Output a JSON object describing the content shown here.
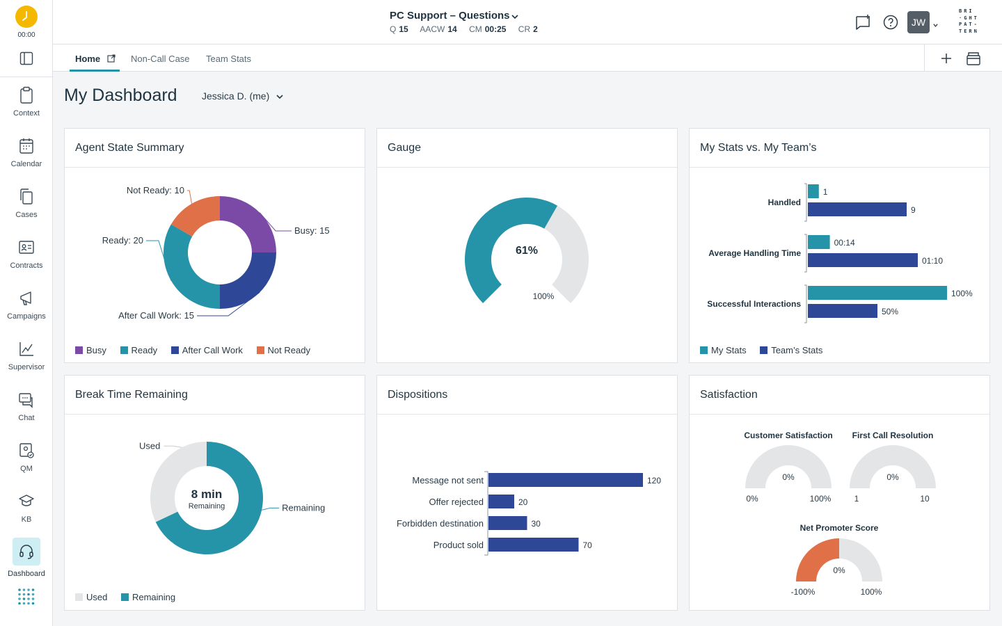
{
  "timer": {
    "time": "00:00"
  },
  "nav": {
    "items": [
      {
        "label": "Context",
        "icon": "clipboard-icon"
      },
      {
        "label": "Calendar",
        "icon": "calendar-icon"
      },
      {
        "label": "Cases",
        "icon": "documents-icon"
      },
      {
        "label": "Contracts",
        "icon": "id-card-icon"
      },
      {
        "label": "Campaigns",
        "icon": "megaphone-icon"
      },
      {
        "label": "Supervisor",
        "icon": "line-chart-icon"
      },
      {
        "label": "Chat",
        "icon": "chat-icon"
      },
      {
        "label": "QM",
        "icon": "qm-icon"
      },
      {
        "label": "KB",
        "icon": "graduation-cap-icon"
      },
      {
        "label": "Dashboard",
        "icon": "headset-icon",
        "active": true
      }
    ]
  },
  "header": {
    "queue_title": "PC Support – Questions",
    "stats": [
      {
        "label": "Q",
        "value": "15"
      },
      {
        "label": "AACW",
        "value": "14"
      },
      {
        "label": "CM",
        "value": "00:25"
      },
      {
        "label": "CR",
        "value": "2"
      }
    ],
    "avatar": "JW",
    "logo_lines": [
      "BRI",
      "·GHT",
      "PAT-",
      "TERN"
    ]
  },
  "tabs": [
    {
      "label": "Home",
      "active": true
    },
    {
      "label": "Non-Call Case"
    },
    {
      "label": "Team Stats"
    }
  ],
  "page": {
    "title": "My Dashboard",
    "user": "Jessica D. (me)"
  },
  "colors": {
    "busy": "#7b49a6",
    "ready": "#2593a8",
    "acw": "#2e4796",
    "notready": "#e07048",
    "grey": "#e4e5e7",
    "my_stats": "#2593a8",
    "team_stats": "#2e4796"
  },
  "cards": {
    "agent_state": {
      "title": "Agent State Summary",
      "legend": [
        "Busy",
        "Ready",
        "After Call Work",
        "Not Ready"
      ]
    },
    "gauge": {
      "title": "Gauge"
    },
    "my_stats": {
      "title": "My Stats vs. My Team’s",
      "legend": [
        "My Stats",
        "Team’s Stats"
      ]
    },
    "break_time": {
      "title": "Break Time Remaining",
      "legend": [
        "Used",
        "Remaining"
      ]
    },
    "dispositions": {
      "title": "Dispositions"
    },
    "satisfaction": {
      "title": "Satisfaction"
    }
  },
  "chart_data": [
    {
      "type": "pie",
      "title": "Agent State Summary",
      "categories": [
        "Busy",
        "Ready",
        "After Call Work",
        "Not Ready"
      ],
      "values": [
        15,
        20,
        15,
        10
      ],
      "data_labels": [
        "Busy: 15",
        "Ready: 20",
        "After Call Work: 15",
        "Not Ready: 10"
      ]
    },
    {
      "type": "gauge",
      "title": "Gauge",
      "value": 61,
      "value_label": "61%",
      "max_label": "100%"
    },
    {
      "type": "bar",
      "title": "My Stats vs. My Team’s",
      "categories": [
        "Handled",
        "Average Handling Time",
        "Successful Interactions"
      ],
      "series": [
        {
          "name": "My Stats",
          "values": [
            1,
            14,
            100
          ],
          "labels": [
            "1",
            "00:14",
            "100%"
          ]
        },
        {
          "name": "Team’s Stats",
          "values": [
            9,
            70,
            50
          ],
          "labels": [
            "9",
            "01:10",
            "50%"
          ]
        }
      ]
    },
    {
      "type": "pie",
      "title": "Break Time Remaining",
      "categories": [
        "Used",
        "Remaining"
      ],
      "values": [
        32,
        68
      ],
      "center_value": "8 min",
      "center_label": "Remaining"
    },
    {
      "type": "bar",
      "title": "Dispositions",
      "categories": [
        "Message not sent",
        "Offer rejected",
        "Forbidden destination",
        "Product sold"
      ],
      "values": [
        120,
        20,
        30,
        70
      ]
    },
    {
      "type": "gauge",
      "title": "Satisfaction",
      "gauges": [
        {
          "label": "Customer Satisfaction",
          "value_label": "0%",
          "min": "0%",
          "max": "100%",
          "fraction": 0
        },
        {
          "label": "First Call Resolution",
          "value_label": "0%",
          "min": "1",
          "max": "10",
          "fraction": 0
        },
        {
          "label": "Net Promoter Score",
          "value_label": "0%",
          "min": "-100%",
          "max": "100%",
          "fraction": 0.5
        }
      ]
    }
  ]
}
